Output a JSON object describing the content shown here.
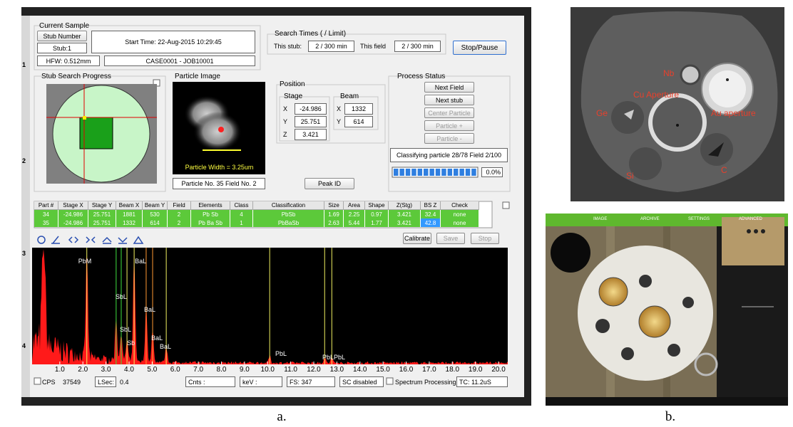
{
  "current_sample": {
    "title": "Current Sample",
    "stub_number_button": "Stub Number",
    "stub": "Stub:1",
    "start_time": "Start Time: 22-Aug-2015 10:29:45",
    "hfw": "HFW: 0.512mm",
    "job": "CASE0001 - JOB10001"
  },
  "search_times": {
    "title": "Search Times ( / Limit)",
    "this_stub_label": "This stub:",
    "this_stub": "2 / 300 min",
    "this_field_label": "This field",
    "this_field": "2 / 300 min",
    "stop_button": "Stop/Pause"
  },
  "stub_search": {
    "title": "Stub Search Progress"
  },
  "particle_image": {
    "title": "Particle Image",
    "width_label": "Particle Width = 3.25um",
    "particle_info": "Particle No.  35 Field No.  2"
  },
  "position": {
    "title": "Position",
    "stage_title": "Stage",
    "beam_title": "Beam",
    "stage": [
      {
        "axis": "X",
        "value": "-24.986"
      },
      {
        "axis": "Y",
        "value": "25.751"
      },
      {
        "axis": "Z",
        "value": "3.421"
      }
    ],
    "beam": [
      {
        "axis": "X",
        "value": "1332"
      },
      {
        "axis": "Y",
        "value": "614"
      }
    ]
  },
  "peak_id_button": "Peak ID",
  "process_status": {
    "title": "Process Status",
    "buttons": [
      "Next Field",
      "Next stub",
      "Center Particle",
      "Particle +",
      "Particle -"
    ],
    "status": "Classifying particle 28/78 Field  2/100",
    "progress": "0.0%"
  },
  "table": {
    "headers": [
      "Part #",
      "Stage X",
      "Stage Y",
      "Beam X",
      "Beam Y",
      "Field",
      "Elements",
      "Class",
      "Classification",
      "Size",
      "Area",
      "Shape",
      "Z(Stg)",
      "BS Z",
      "Check"
    ],
    "rows": [
      [
        "34",
        "-24.986",
        "25.751",
        "1881",
        "530",
        "2",
        "Pb Sb",
        "4",
        "PbSb",
        "1.69",
        "2.25",
        "0.97",
        "3.421",
        "32.4",
        "none"
      ],
      [
        "35",
        "-24.986",
        "25.751",
        "1332",
        "614",
        "2",
        "Pb Ba Sb",
        "1",
        "PbBaSb",
        "2.63",
        "5.44",
        "1.77",
        "3.421",
        "42.8",
        "none"
      ]
    ]
  },
  "toolbar": {
    "calibrate": "Calibrate",
    "save": "Save",
    "stop": "Stop"
  },
  "chart_data": {
    "type": "spectrum",
    "xlim": [
      -0.2,
      20.4
    ],
    "xticks": [
      {
        "value": 1,
        "label": "1.0"
      },
      {
        "value": 2,
        "label": "2.0"
      },
      {
        "value": 3,
        "label": "3.0"
      },
      {
        "value": 4,
        "label": "4.0"
      },
      {
        "value": 5,
        "label": "5.0"
      },
      {
        "value": 6,
        "label": "6.0"
      },
      {
        "value": 7,
        "label": "7.0"
      },
      {
        "value": 8,
        "label": "8.0"
      },
      {
        "value": 9,
        "label": "9.0"
      },
      {
        "value": 10,
        "label": "10.0"
      },
      {
        "value": 11,
        "label": "11.0"
      },
      {
        "value": 12,
        "label": "12.0"
      },
      {
        "value": 13,
        "label": "13.0"
      },
      {
        "value": 14,
        "label": "14.0"
      },
      {
        "value": 15,
        "label": "15.0"
      },
      {
        "value": 16,
        "label": "16.0"
      },
      {
        "value": 17,
        "label": "17.0"
      },
      {
        "value": 18,
        "label": "18.0"
      },
      {
        "value": 19,
        "label": "19.0"
      },
      {
        "value": 20,
        "label": "20.0"
      }
    ],
    "lines": [
      {
        "x": 2.17,
        "color": "#f0f060"
      },
      {
        "x": 3.44,
        "color": "#40e040"
      },
      {
        "x": 3.66,
        "color": "#40e040"
      },
      {
        "x": 3.91,
        "color": "#f0f060"
      },
      {
        "x": 4.22,
        "color": "#f0f060"
      },
      {
        "x": 4.74,
        "color": "#ff9933"
      },
      {
        "x": 5.02,
        "color": "#ff9933"
      },
      {
        "x": 5.61,
        "color": "#f0f060"
      },
      {
        "x": 10.09,
        "color": "#f0f060"
      },
      {
        "x": 12.47,
        "color": "#f0f060"
      },
      {
        "x": 12.78,
        "color": "#f0f060"
      }
    ],
    "peak_labels": [
      {
        "x": 1.8,
        "label": "PbM"
      },
      {
        "x": 4.25,
        "label": "BaL"
      },
      {
        "x": 3.41,
        "label": "SbL"
      },
      {
        "x": 4.65,
        "label": "BaL"
      },
      {
        "x": 3.6,
        "label": "SbL"
      },
      {
        "x": 3.91,
        "label": "Sb"
      },
      {
        "x": 4.96,
        "label": "BaL"
      },
      {
        "x": 5.33,
        "label": "BaL"
      },
      {
        "x": 10.33,
        "label": "PbL"
      },
      {
        "x": 12.37,
        "label": "PbLPbL"
      }
    ]
  },
  "status_bar": {
    "cps_label": "CPS",
    "cps": "37549",
    "lsec_label": "LSec:",
    "lsec": "0.4",
    "cnts": "Cnts :",
    "kev": "keV :",
    "fs": "FS: 347",
    "sc": "SC disabled",
    "processing": "Spectrum Processing",
    "tc": "TC: 11.2uS"
  },
  "ruler": [
    "1",
    "2",
    "3",
    "4"
  ],
  "sample_image": {
    "labels": [
      "Nb",
      "Cu Aperture",
      "Ge",
      "Au aperture",
      "Si",
      "C"
    ]
  },
  "camera_ui": {
    "tabs": [
      "IMAGE",
      "ARCHIVE",
      "SETTINGS",
      "ADVANCED"
    ]
  },
  "captions": [
    "a.",
    "b."
  ]
}
